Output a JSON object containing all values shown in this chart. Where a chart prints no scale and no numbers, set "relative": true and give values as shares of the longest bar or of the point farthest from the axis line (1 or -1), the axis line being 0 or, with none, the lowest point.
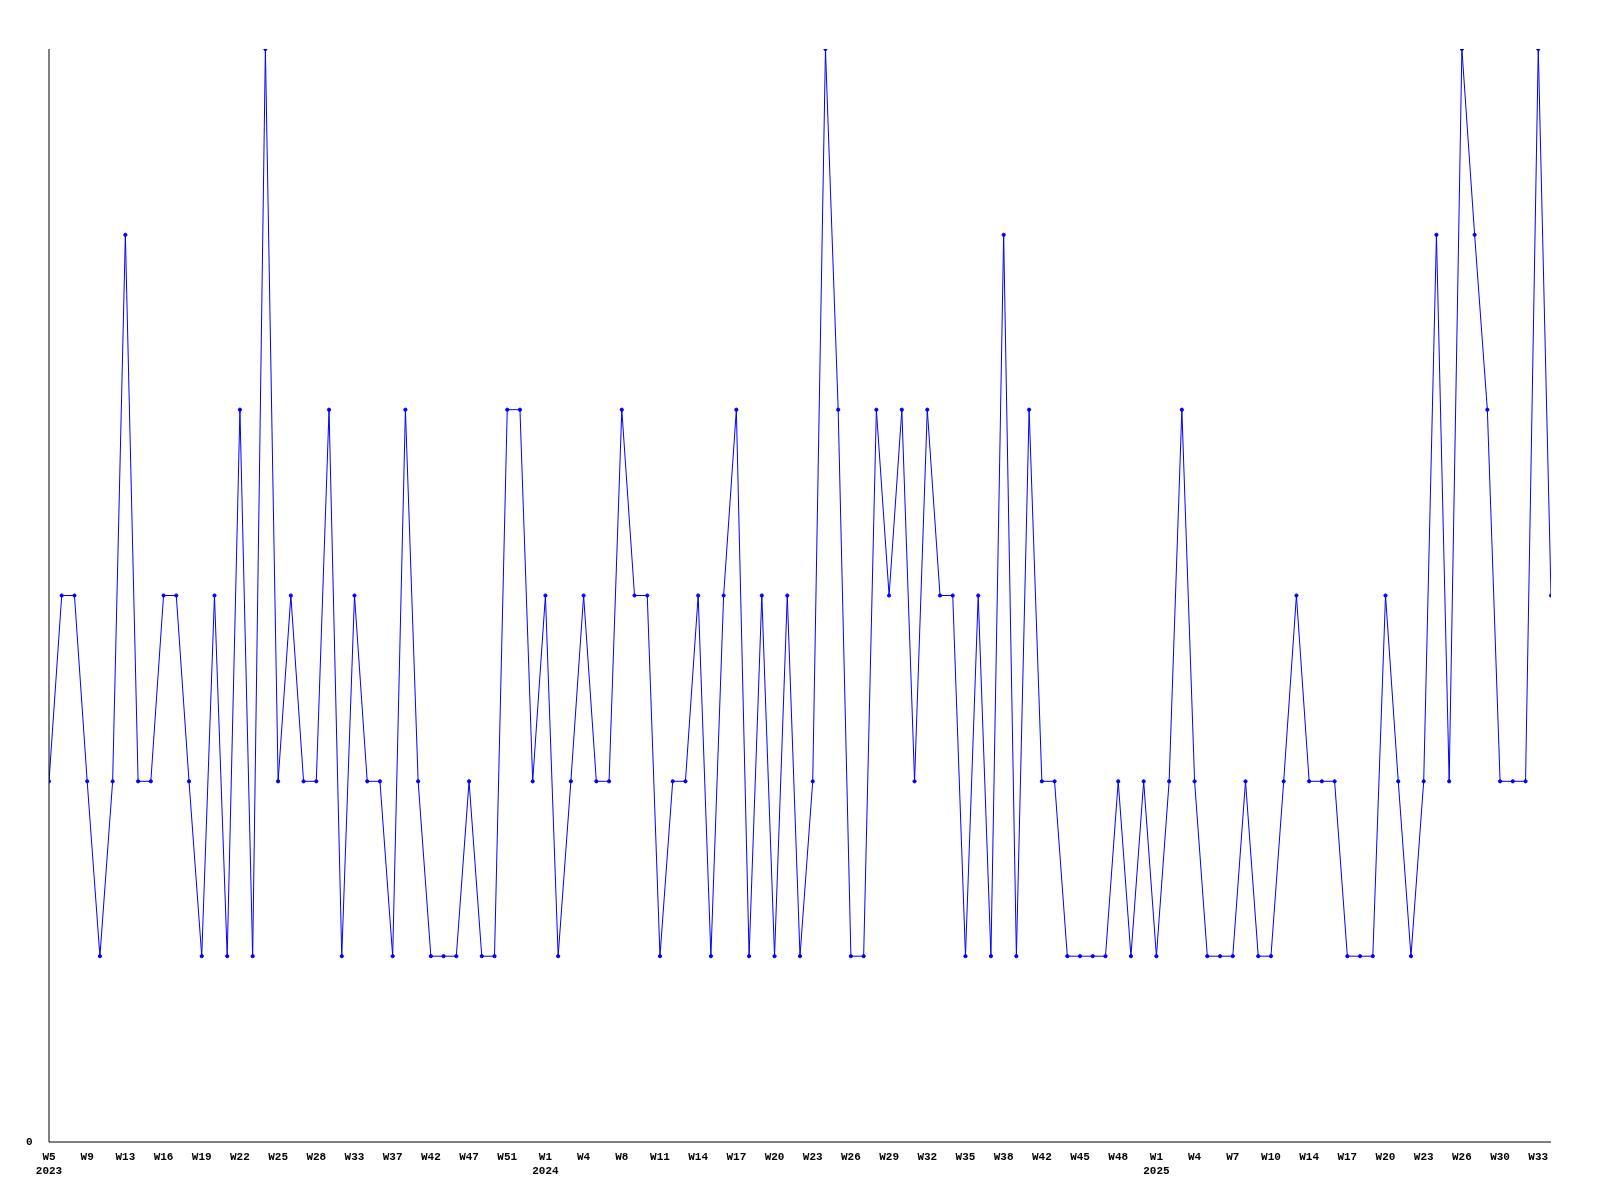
{
  "chart_data": {
    "type": "line",
    "relative": true,
    "grid": false,
    "legend": false,
    "marker": "circle",
    "line_style": "solid",
    "annotations": [
      "0"
    ],
    "categories": [
      "W5\n2023",
      null,
      null,
      "W9",
      null,
      null,
      "W13",
      null,
      null,
      "W16",
      null,
      null,
      "W19",
      null,
      null,
      "W22",
      null,
      null,
      "W25",
      null,
      null,
      "W28",
      null,
      null,
      "W33",
      null,
      null,
      "W37",
      null,
      null,
      "W42",
      null,
      null,
      "W47",
      null,
      null,
      "W51",
      null,
      null,
      "W1\n2024",
      null,
      null,
      "W4",
      null,
      null,
      "W8",
      null,
      null,
      "W11",
      null,
      null,
      "W14",
      null,
      null,
      "W17",
      null,
      null,
      "W20",
      null,
      null,
      "W23",
      null,
      null,
      "W26",
      null,
      null,
      "W29",
      null,
      null,
      "W32",
      null,
      null,
      "W35",
      null,
      null,
      "W38",
      null,
      null,
      "W42",
      null,
      null,
      "W45",
      null,
      null,
      "W48",
      null,
      null,
      "W1\n2025",
      null,
      null,
      "W4",
      null,
      null,
      "W7",
      null,
      null,
      "W10",
      null,
      null,
      "W14",
      null,
      null,
      "W17",
      null,
      null,
      "W20",
      null,
      null,
      "W23",
      null,
      null,
      "W26",
      null,
      null,
      "W30",
      null,
      null,
      "W33",
      null
    ],
    "series": [
      {
        "color": "#0000ff",
        "values": [
          0.33,
          0.5,
          0.5,
          0.33,
          0.17,
          0.33,
          0.83,
          0.33,
          0.33,
          0.5,
          0.5,
          0.33,
          0.17,
          0.5,
          0.17,
          0.67,
          0.17,
          1,
          0.33,
          0.5,
          0.33,
          0.33,
          0.67,
          0.17,
          0.5,
          0.33,
          0.33,
          0.17,
          0.67,
          0.33,
          0.17,
          0.17,
          0.17,
          0.33,
          0.17,
          0.17,
          0.67,
          0.67,
          0.33,
          0.5,
          0.17,
          0.33,
          0.5,
          0.33,
          0.33,
          0.67,
          0.5,
          0.5,
          0.17,
          0.33,
          0.33,
          0.5,
          0.17,
          0.5,
          0.67,
          0.17,
          0.5,
          0.17,
          0.5,
          0.17,
          0.33,
          1,
          0.67,
          0.17,
          0.17,
          0.67,
          0.5,
          0.67,
          0.33,
          0.67,
          0.5,
          0.5,
          0.17,
          0.5,
          0.17,
          0.83,
          0.17,
          0.67,
          0.33,
          0.33,
          0.17,
          0.17,
          0.17,
          0.17,
          0.33,
          0.17,
          0.33,
          0.17,
          0.33,
          0.67,
          0.33,
          0.17,
          0.17,
          0.17,
          0.33,
          0.17,
          0.17,
          0.33,
          0.5,
          0.33,
          0.33,
          0.33,
          0.17,
          0.17,
          0.17,
          0.5,
          0.33,
          0.17,
          0.33,
          0.83,
          0.33,
          1,
          0.83,
          0.67,
          0.33,
          0.33,
          0.33,
          1,
          0.5
        ]
      }
    ]
  }
}
